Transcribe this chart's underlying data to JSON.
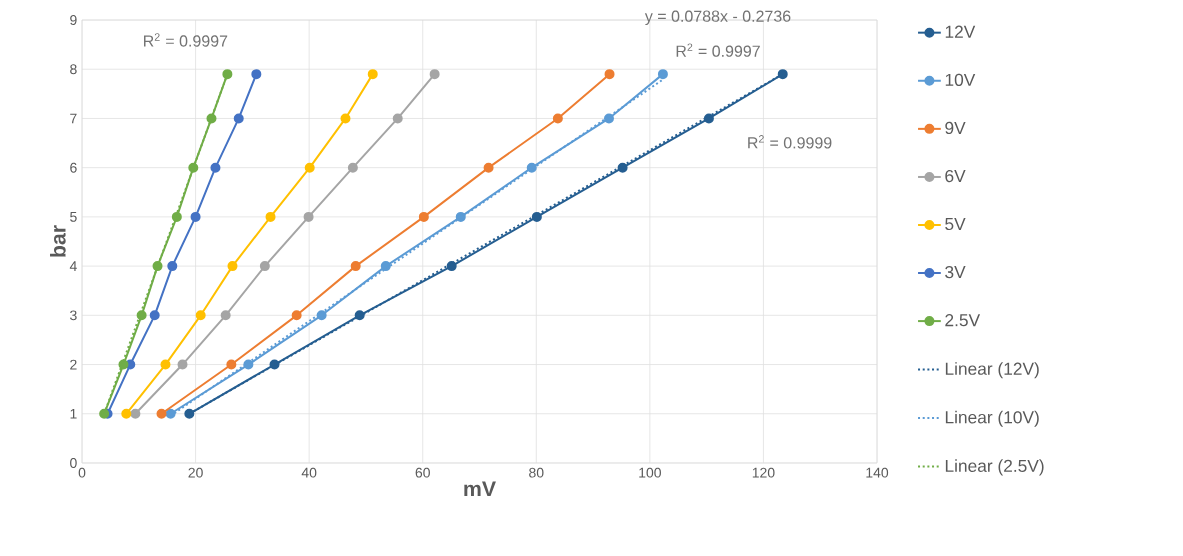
{
  "chart_data": {
    "type": "line",
    "xlabel": "mV",
    "ylabel": "bar",
    "xlim": [
      0,
      140
    ],
    "xticks": [
      0,
      20,
      40,
      60,
      80,
      100,
      120,
      140
    ],
    "ylim": [
      0,
      9
    ],
    "yticks": [
      0,
      1,
      2,
      3,
      4,
      5,
      6,
      7,
      8,
      9
    ],
    "grid": true,
    "legend": "right",
    "marker": "circle",
    "line_style": "solid",
    "series": [
      {
        "name": "12V",
        "color": "#255e91",
        "x": [
          18.9,
          33.9,
          48.9,
          65.1,
          80.1,
          95.2,
          110.4,
          123.4
        ],
        "values": [
          1,
          2,
          3,
          4,
          5,
          6,
          7,
          7.9
        ]
      },
      {
        "name": "10V",
        "color": "#5b9bd5",
        "x": [
          15.6,
          29.3,
          42.2,
          53.5,
          66.7,
          79.2,
          92.8,
          102.3
        ],
        "values": [
          1,
          2,
          3,
          4,
          5,
          6,
          7,
          7.9
        ]
      },
      {
        "name": "9V",
        "color": "#ed7d31",
        "x": [
          14.0,
          26.3,
          37.8,
          48.2,
          60.2,
          71.6,
          83.8,
          92.9
        ],
        "values": [
          1,
          2,
          3,
          4,
          5,
          6,
          7,
          7.9
        ]
      },
      {
        "name": "6V",
        "color": "#a5a5a5",
        "x": [
          9.4,
          17.7,
          25.3,
          32.2,
          39.9,
          47.7,
          55.6,
          62.1
        ],
        "values": [
          1,
          2,
          3,
          4,
          5,
          6,
          7,
          7.9
        ]
      },
      {
        "name": "5V",
        "color": "#ffc000",
        "x": [
          7.8,
          14.7,
          20.9,
          26.5,
          33.2,
          40.1,
          46.4,
          51.2
        ],
        "values": [
          1,
          2,
          3,
          4,
          5,
          6,
          7,
          7.9
        ]
      },
      {
        "name": "3V",
        "color": "#4472c4",
        "x": [
          4.5,
          8.5,
          12.8,
          15.9,
          20.0,
          23.5,
          27.6,
          30.7
        ],
        "values": [
          1,
          2,
          3,
          4,
          5,
          6,
          7,
          7.9
        ]
      },
      {
        "name": "2.5V",
        "color": "#70ad47",
        "x": [
          3.9,
          7.3,
          10.5,
          13.3,
          16.7,
          19.6,
          22.8,
          25.6
        ],
        "values": [
          1,
          2,
          3,
          4,
          5,
          6,
          7,
          7.9
        ]
      },
      {
        "name": "Linear (12V)",
        "type": "line",
        "color": "#255e91",
        "line_style": "dotted",
        "marker": "none",
        "x": [
          18.9,
          123.4
        ],
        "values": [
          1.0,
          7.9
        ]
      },
      {
        "name": "Linear (10V)",
        "type": "line",
        "color": "#5b9bd5",
        "line_style": "dotted",
        "marker": "none",
        "x": [
          15.6,
          102.3
        ],
        "values": [
          0.96,
          7.79
        ]
      },
      {
        "name": "Linear (2.5V)",
        "type": "line",
        "color": "#70ad47",
        "line_style": "dotted",
        "marker": "none",
        "x": [
          3.9,
          25.6
        ],
        "values": [
          1.0,
          7.9
        ]
      }
    ],
    "annotations": [
      "R$^{2}$ = 0.9997",
      "y = 0.0788x - 0.2736",
      "R$^{2}$ = 0.9997",
      "R$^{2}$ = 0.9999"
    ]
  }
}
